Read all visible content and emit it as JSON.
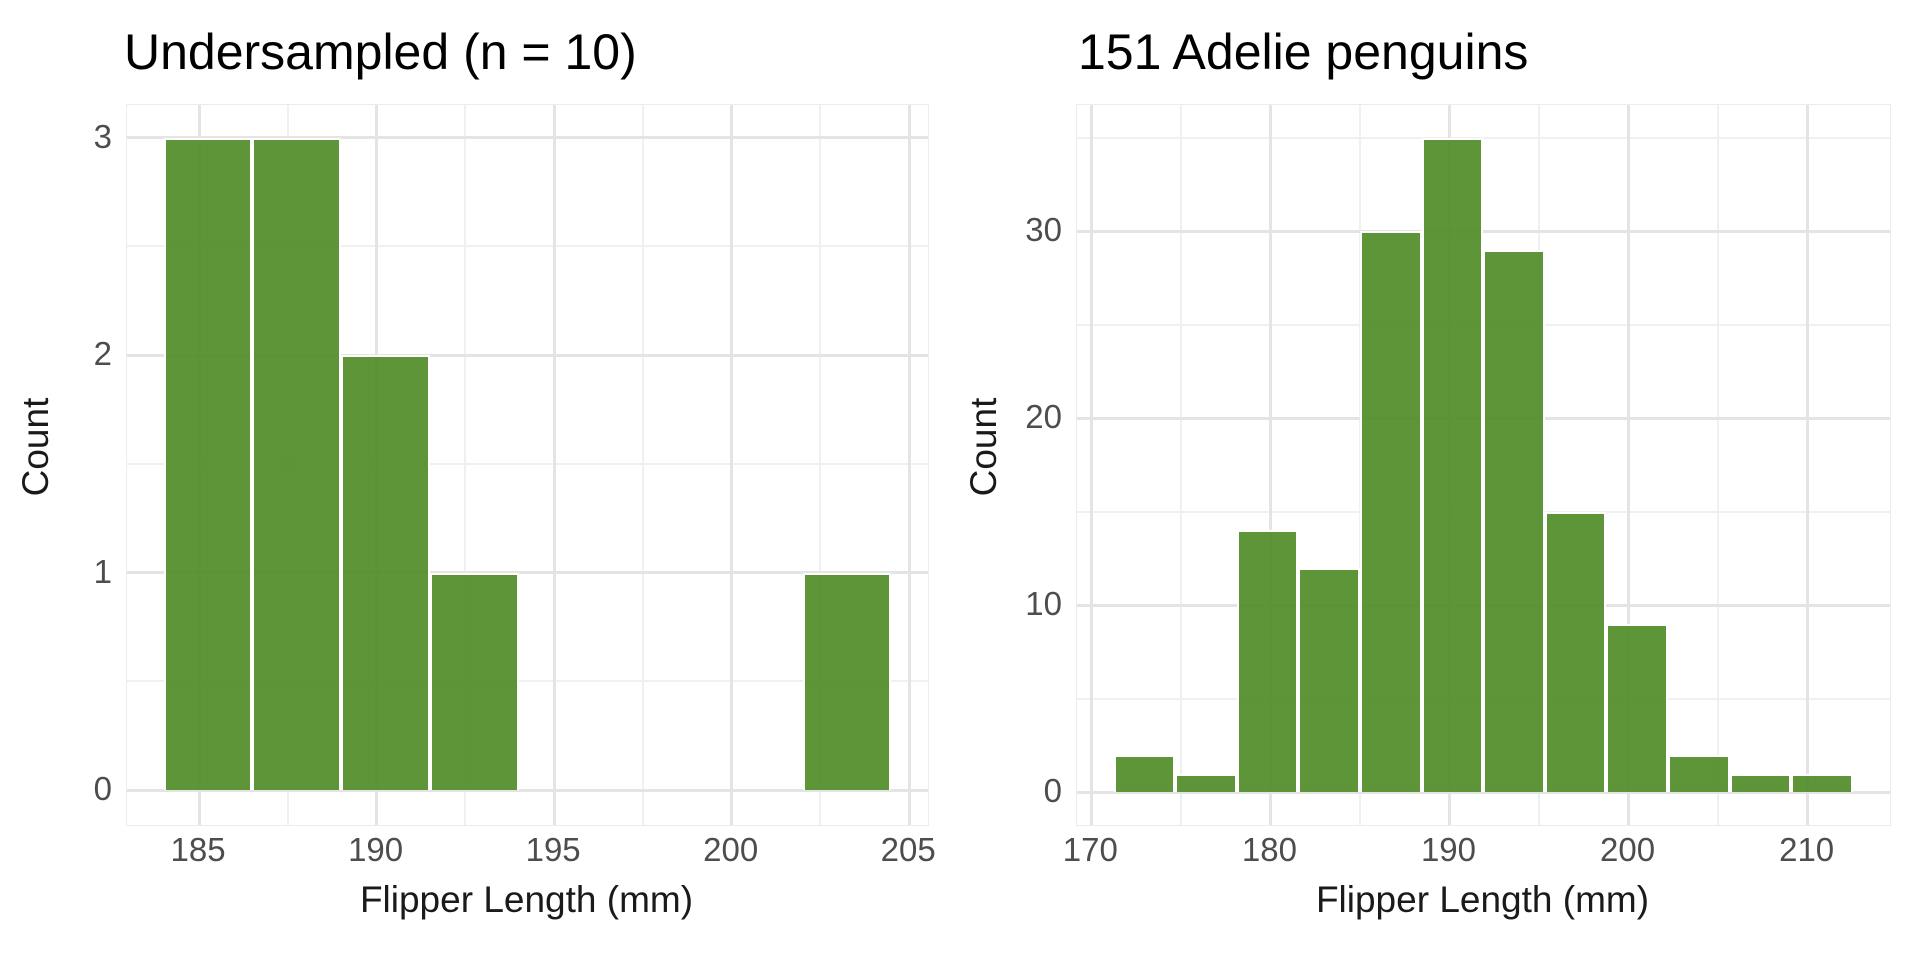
{
  "figure": {
    "background": "#ffffff"
  },
  "colors": {
    "bar_fill_base": "#4c8a22",
    "bar_fill_alpha": 0.9,
    "bar_border": "#ffffff",
    "grid_major": "#e4e4e4",
    "grid_minor": "#f0f0f0",
    "panel_border": "#ececec",
    "title_text": "#000000",
    "axis_title_text": "#1a1a1a",
    "tick_text": "#4d4d4d"
  },
  "chart_data": [
    {
      "type": "bar",
      "subtype": "histogram",
      "title": "Undersampled (n = 10)",
      "xlabel": "Flipper Length (mm)",
      "ylabel": "Count",
      "n_total": 10,
      "x_ticks": [
        185,
        190,
        195,
        200,
        205
      ],
      "x_minor_ticks": [
        187.5,
        192.5,
        197.5,
        202.5
      ],
      "y_ticks": [
        0,
        1,
        2,
        3
      ],
      "y_minor_ticks": [
        0.5,
        1.5,
        2.5
      ],
      "x_domain": [
        182.97,
        205.53
      ],
      "y_domain": [
        -0.16,
        3.15
      ],
      "grid": true,
      "legend": false,
      "bins": [
        {
          "x0": 184.0,
          "x1": 186.5,
          "count": 3
        },
        {
          "x0": 186.5,
          "x1": 189.0,
          "count": 3
        },
        {
          "x0": 189.0,
          "x1": 191.5,
          "count": 2
        },
        {
          "x0": 191.5,
          "x1": 194.0,
          "count": 1
        },
        {
          "x0": 202.0,
          "x1": 204.5,
          "count": 1
        }
      ]
    },
    {
      "type": "bar",
      "subtype": "histogram",
      "title": "151 Adelie penguins",
      "xlabel": "Flipper Length (mm)",
      "ylabel": "Count",
      "n_total": 151,
      "x_ticks": [
        170,
        180,
        190,
        200,
        210
      ],
      "x_minor_ticks": [
        175,
        185,
        195,
        205
      ],
      "y_ticks": [
        0,
        10,
        20,
        30
      ],
      "y_minor_ticks": [
        5,
        15,
        25,
        35
      ],
      "x_domain": [
        169.2,
        214.6
      ],
      "y_domain": [
        -1.75,
        36.75
      ],
      "grid": true,
      "legend": false,
      "bins": [
        {
          "x0": 171.24,
          "x1": 174.68,
          "count": 2
        },
        {
          "x0": 174.68,
          "x1": 178.12,
          "count": 1
        },
        {
          "x0": 178.12,
          "x1": 181.56,
          "count": 14
        },
        {
          "x0": 181.56,
          "x1": 185.0,
          "count": 12
        },
        {
          "x0": 185.0,
          "x1": 188.44,
          "count": 30
        },
        {
          "x0": 188.44,
          "x1": 191.88,
          "count": 35
        },
        {
          "x0": 191.88,
          "x1": 195.32,
          "count": 29
        },
        {
          "x0": 195.32,
          "x1": 198.76,
          "count": 15
        },
        {
          "x0": 198.76,
          "x1": 202.2,
          "count": 9
        },
        {
          "x0": 202.2,
          "x1": 205.64,
          "count": 2
        },
        {
          "x0": 205.64,
          "x1": 209.08,
          "count": 1
        },
        {
          "x0": 209.08,
          "x1": 212.52,
          "count": 1
        }
      ]
    }
  ]
}
